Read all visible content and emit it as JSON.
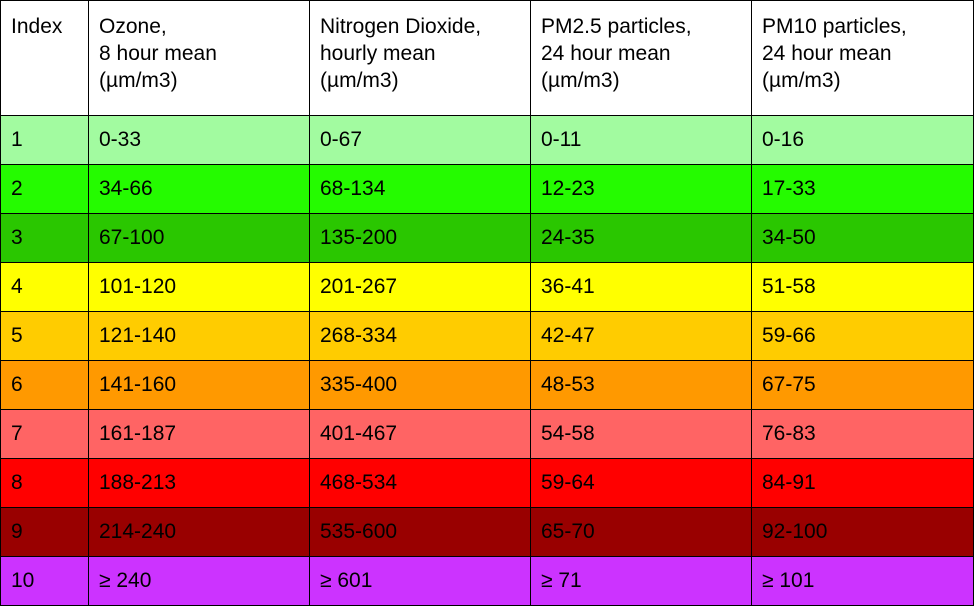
{
  "table": {
    "headers": [
      {
        "key": "index",
        "lines": [
          "Index"
        ]
      },
      {
        "key": "ozone",
        "lines": [
          "Ozone,",
          "8 hour mean",
          "(µm/m3)"
        ]
      },
      {
        "key": "nitrogen-dioxide",
        "lines": [
          "Nitrogen Dioxide,",
          "hourly mean",
          "(µm/m3)"
        ]
      },
      {
        "key": "pm25",
        "lines": [
          "PM2.5 particles,",
          "24 hour mean",
          "(µm/m3)"
        ]
      },
      {
        "key": "pm10",
        "lines": [
          "PM10 particles,",
          "24 hour mean",
          "(µm/m3)"
        ]
      }
    ],
    "rows": [
      {
        "color": "#a2fba0",
        "cells": [
          "1",
          "0-33",
          "0-67",
          "0-11",
          "0-16"
        ]
      },
      {
        "color": "#25fb00",
        "cells": [
          "2",
          "34-66",
          "68-134",
          "12-23",
          "17-33"
        ]
      },
      {
        "color": "#2ac700",
        "cells": [
          "3",
          "67-100",
          "135-200",
          "24-35",
          "34-50"
        ]
      },
      {
        "color": "#ffff00",
        "cells": [
          "4",
          "101-120",
          "201-267",
          "36-41",
          "51-58"
        ]
      },
      {
        "color": "#ffcc00",
        "cells": [
          "5",
          "121-140",
          "268-334",
          "42-47",
          "59-66"
        ]
      },
      {
        "color": "#ff9900",
        "cells": [
          "6",
          "141-160",
          "335-400",
          "48-53",
          "67-75"
        ]
      },
      {
        "color": "#ff6464",
        "cells": [
          "7",
          "161-187",
          "401-467",
          "54-58",
          "76-83"
        ]
      },
      {
        "color": "#ff0000",
        "cells": [
          "8",
          "188-213",
          "468-534",
          "59-64",
          "84-91"
        ]
      },
      {
        "color": "#990000",
        "cells": [
          "9",
          "214-240",
          "535-600",
          "65-70",
          "92-100"
        ]
      },
      {
        "color": "#cc33ff",
        "cells": [
          "10",
          "≥ 240",
          "≥ 601",
          "≥ 71",
          "≥ 101"
        ]
      }
    ]
  }
}
